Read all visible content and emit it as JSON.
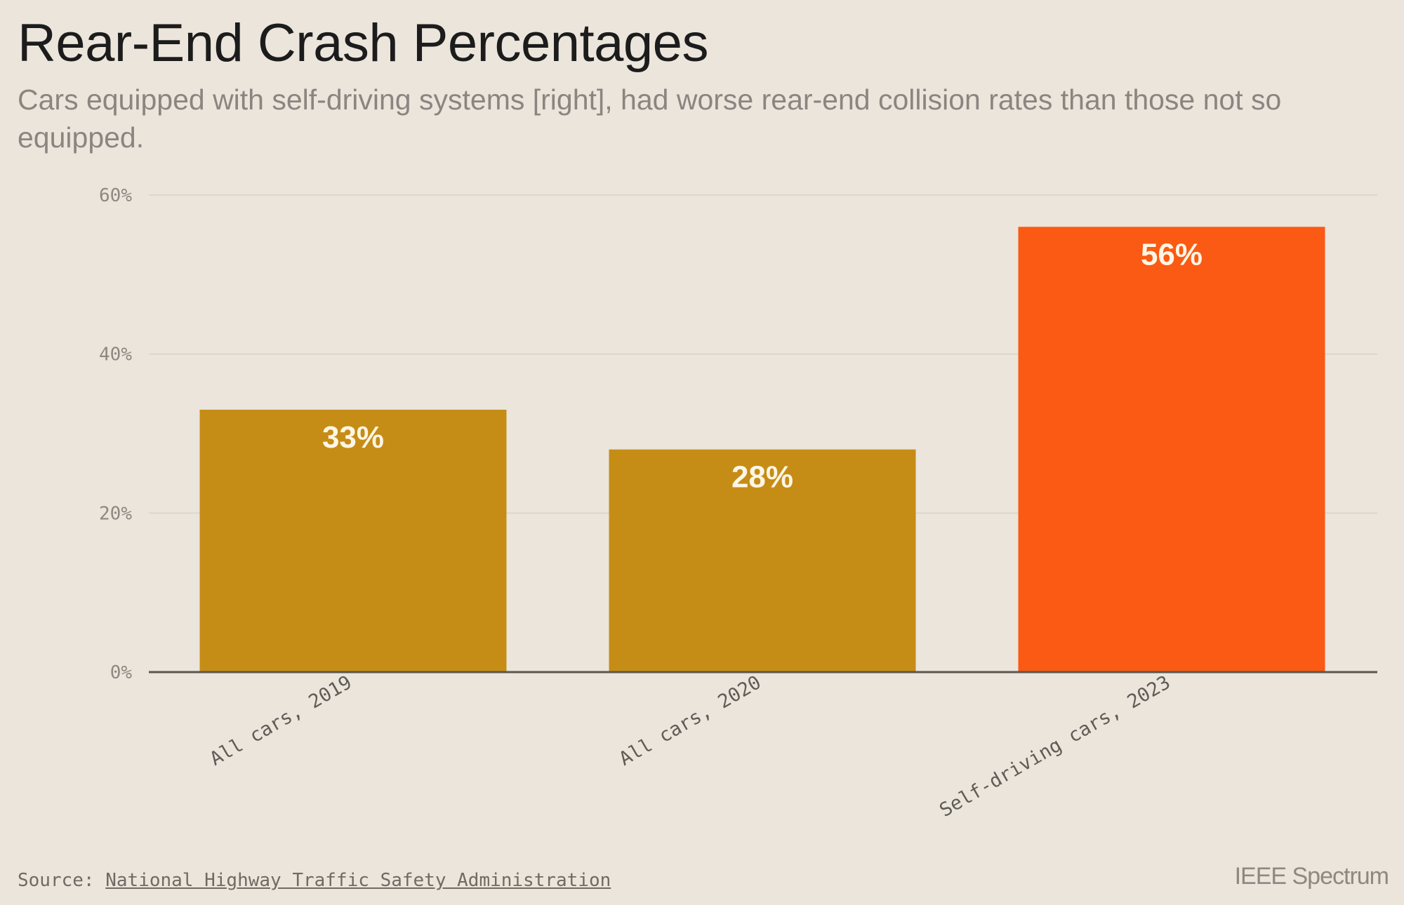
{
  "header": {
    "title": "Rear-End Crash Percentages",
    "subtitle": "Cars equipped with self-driving systems [right], had worse rear-end collision rates than those not so equipped."
  },
  "chart_data": {
    "type": "bar",
    "categories": [
      "All cars, 2019",
      "All cars, 2020",
      "Self-driving cars, 2023"
    ],
    "values": [
      33,
      28,
      56
    ],
    "data_labels": [
      "33%",
      "28%",
      "56%"
    ],
    "colors": [
      "#c68d16",
      "#c68d16",
      "#fa5a13"
    ],
    "ylim": [
      0,
      60
    ],
    "yticks": [
      0,
      20,
      40,
      60
    ],
    "ytick_labels": [
      "0%",
      "20%",
      "40%",
      "60%"
    ],
    "grid": true
  },
  "footer": {
    "source_prefix": "Source:",
    "source_link": "National Highway Traffic Safety Administration",
    "brand": "IEEE Spectrum"
  }
}
